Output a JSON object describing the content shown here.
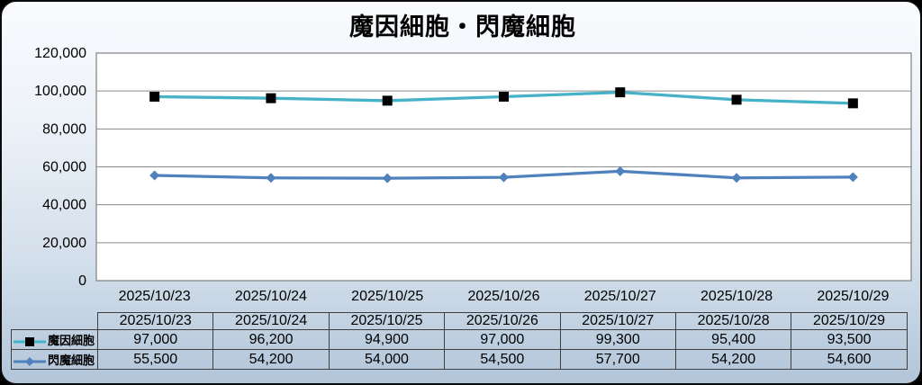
{
  "title": "魔因細胞・閃魔細胞",
  "chart_data": {
    "type": "line",
    "title": "魔因細胞・閃魔細胞",
    "xlabel": "",
    "ylabel": "",
    "categories": [
      "2025/10/23",
      "2025/10/24",
      "2025/10/25",
      "2025/10/26",
      "2025/10/27",
      "2025/10/28",
      "2025/10/29"
    ],
    "series": [
      {
        "name": "魔因細胞",
        "values": [
          97000,
          96200,
          94900,
          97000,
          99300,
          95400,
          93500
        ],
        "color": "#45b2c8",
        "marker": "square",
        "marker_color": "#000000"
      },
      {
        "name": "閃魔細胞",
        "values": [
          55500,
          54200,
          54000,
          54500,
          57700,
          54200,
          54600
        ],
        "color": "#4f81bd",
        "marker": "diamond",
        "marker_color": "#4f81bd"
      }
    ],
    "ylim": [
      0,
      120000
    ],
    "ytick_step": 20000,
    "yticks": [
      0,
      20000,
      40000,
      60000,
      80000,
      100000,
      120000
    ],
    "grid": true,
    "legend_position": "data-table-left",
    "plot_background": "#ffffff",
    "grid_color": "#8c8c8c",
    "plot_border_color": "#7f7f7f",
    "text_color": "#000000"
  }
}
